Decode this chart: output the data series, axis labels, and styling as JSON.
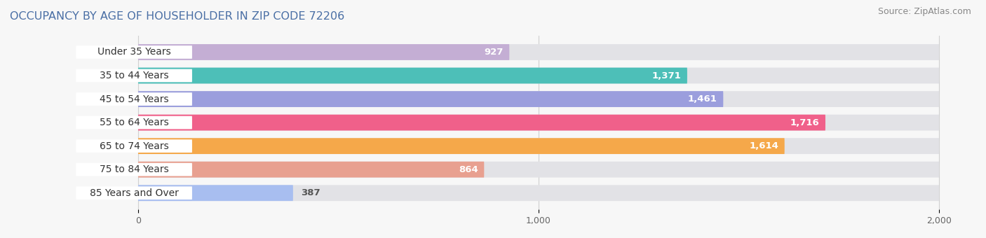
{
  "title": "OCCUPANCY BY AGE OF HOUSEHOLDER IN ZIP CODE 72206",
  "source": "Source: ZipAtlas.com",
  "categories": [
    "Under 35 Years",
    "35 to 44 Years",
    "45 to 54 Years",
    "55 to 64 Years",
    "65 to 74 Years",
    "75 to 84 Years",
    "85 Years and Over"
  ],
  "values": [
    927,
    1371,
    1461,
    1716,
    1614,
    864,
    387
  ],
  "bar_colors": [
    "#c4aed4",
    "#4dbfb8",
    "#9b9edd",
    "#f0608a",
    "#f5a84a",
    "#e8a090",
    "#a8bef0"
  ],
  "xlim_min": -320,
  "xlim_max": 2080,
  "data_max": 2000,
  "xticks": [
    0,
    1000,
    2000
  ],
  "xlabel_labels": [
    "0",
    "1,000",
    "2,000"
  ],
  "title_fontsize": 11.5,
  "title_color": "#4a6fa5",
  "source_fontsize": 9,
  "bar_height": 0.68,
  "background_color": "#f7f7f7",
  "bar_bg_color": "#e2e2e6",
  "label_fontsize": 10,
  "value_fontsize": 9.5,
  "grid_color": "#d0d0d0"
}
